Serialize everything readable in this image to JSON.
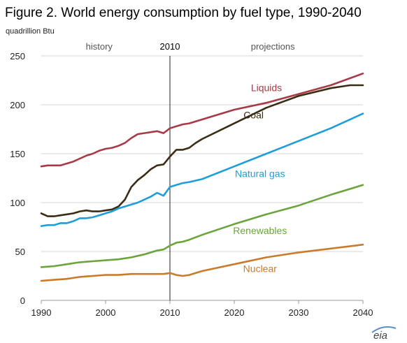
{
  "chart_data": {
    "type": "line",
    "title": "Figure 2. World energy consumption by fuel type, 1990-2040",
    "ylabel": "quadrillion  Btu",
    "xlim": [
      1990,
      2040
    ],
    "ylim": [
      0,
      250
    ],
    "x_ticks": [
      1990,
      2000,
      2010,
      2020,
      2030,
      2040
    ],
    "y_ticks": [
      0,
      50,
      100,
      150,
      200,
      250
    ],
    "grid": true,
    "divider_year": 2010,
    "regions": {
      "history": "history",
      "year": "2010",
      "projections": "projections"
    },
    "series": [
      {
        "name": "Liquids",
        "color": "#a83a46",
        "points": [
          [
            1990,
            137
          ],
          [
            1991,
            138
          ],
          [
            1992,
            138
          ],
          [
            1993,
            138
          ],
          [
            1994,
            140
          ],
          [
            1995,
            142
          ],
          [
            1996,
            145
          ],
          [
            1997,
            148
          ],
          [
            1998,
            150
          ],
          [
            1999,
            153
          ],
          [
            2000,
            155
          ],
          [
            2001,
            156
          ],
          [
            2002,
            158
          ],
          [
            2003,
            161
          ],
          [
            2004,
            166
          ],
          [
            2005,
            170
          ],
          [
            2006,
            171
          ],
          [
            2007,
            172
          ],
          [
            2008,
            173
          ],
          [
            2009,
            171
          ],
          [
            2010,
            176
          ],
          [
            2011,
            178
          ],
          [
            2012,
            180
          ],
          [
            2013,
            181
          ],
          [
            2015,
            185
          ],
          [
            2020,
            195
          ],
          [
            2025,
            202
          ],
          [
            2030,
            211
          ],
          [
            2035,
            220
          ],
          [
            2040,
            232
          ]
        ]
      },
      {
        "name": "Coal",
        "color": "#3b2d14",
        "points": [
          [
            1990,
            89
          ],
          [
            1991,
            86
          ],
          [
            1992,
            86
          ],
          [
            1993,
            87
          ],
          [
            1994,
            88
          ],
          [
            1995,
            89
          ],
          [
            1996,
            91
          ],
          [
            1997,
            92
          ],
          [
            1998,
            91
          ],
          [
            1999,
            91
          ],
          [
            2000,
            92
          ],
          [
            2001,
            93
          ],
          [
            2002,
            96
          ],
          [
            2003,
            103
          ],
          [
            2004,
            116
          ],
          [
            2005,
            123
          ],
          [
            2006,
            128
          ],
          [
            2007,
            134
          ],
          [
            2008,
            138
          ],
          [
            2009,
            139
          ],
          [
            2010,
            147
          ],
          [
            2011,
            154
          ],
          [
            2012,
            154
          ],
          [
            2013,
            156
          ],
          [
            2014,
            161
          ],
          [
            2015,
            165
          ],
          [
            2020,
            181
          ],
          [
            2025,
            197
          ],
          [
            2030,
            209
          ],
          [
            2035,
            217
          ],
          [
            2038,
            220
          ],
          [
            2040,
            220
          ]
        ]
      },
      {
        "name": "Natural  gas",
        "color": "#1c9fd9",
        "points": [
          [
            1990,
            76
          ],
          [
            1991,
            77
          ],
          [
            1992,
            77
          ],
          [
            1993,
            79
          ],
          [
            1994,
            79
          ],
          [
            1995,
            81
          ],
          [
            1996,
            84
          ],
          [
            1997,
            84
          ],
          [
            1998,
            85
          ],
          [
            1999,
            87
          ],
          [
            2000,
            89
          ],
          [
            2001,
            91
          ],
          [
            2002,
            94
          ],
          [
            2003,
            96
          ],
          [
            2004,
            98
          ],
          [
            2005,
            100
          ],
          [
            2006,
            103
          ],
          [
            2007,
            106
          ],
          [
            2008,
            110
          ],
          [
            2009,
            107
          ],
          [
            2010,
            116
          ],
          [
            2011,
            118
          ],
          [
            2012,
            120
          ],
          [
            2013,
            121
          ],
          [
            2015,
            124
          ],
          [
            2020,
            137
          ],
          [
            2025,
            150
          ],
          [
            2030,
            163
          ],
          [
            2035,
            176
          ],
          [
            2040,
            191
          ]
        ]
      },
      {
        "name": "Renewables",
        "color": "#6aa43b",
        "points": [
          [
            1990,
            34
          ],
          [
            1992,
            35
          ],
          [
            1994,
            37
          ],
          [
            1996,
            39
          ],
          [
            1998,
            40
          ],
          [
            2000,
            41
          ],
          [
            2002,
            42
          ],
          [
            2004,
            44
          ],
          [
            2006,
            47
          ],
          [
            2008,
            51
          ],
          [
            2009,
            52
          ],
          [
            2010,
            56
          ],
          [
            2011,
            59
          ],
          [
            2012,
            60
          ],
          [
            2013,
            62
          ],
          [
            2015,
            67
          ],
          [
            2020,
            78
          ],
          [
            2025,
            88
          ],
          [
            2030,
            97
          ],
          [
            2035,
            108
          ],
          [
            2040,
            118
          ]
        ]
      },
      {
        "name": "Nuclear",
        "color": "#c97b2b",
        "points": [
          [
            1990,
            20
          ],
          [
            1992,
            21
          ],
          [
            1994,
            22
          ],
          [
            1996,
            24
          ],
          [
            1998,
            25
          ],
          [
            2000,
            26
          ],
          [
            2002,
            26
          ],
          [
            2004,
            27
          ],
          [
            2006,
            27
          ],
          [
            2008,
            27
          ],
          [
            2009,
            27
          ],
          [
            2010,
            28
          ],
          [
            2011,
            26
          ],
          [
            2012,
            25
          ],
          [
            2013,
            26
          ],
          [
            2015,
            30
          ],
          [
            2020,
            37
          ],
          [
            2025,
            44
          ],
          [
            2030,
            49
          ],
          [
            2035,
            53
          ],
          [
            2040,
            57
          ]
        ]
      }
    ]
  },
  "logo": {
    "text": "eia"
  }
}
